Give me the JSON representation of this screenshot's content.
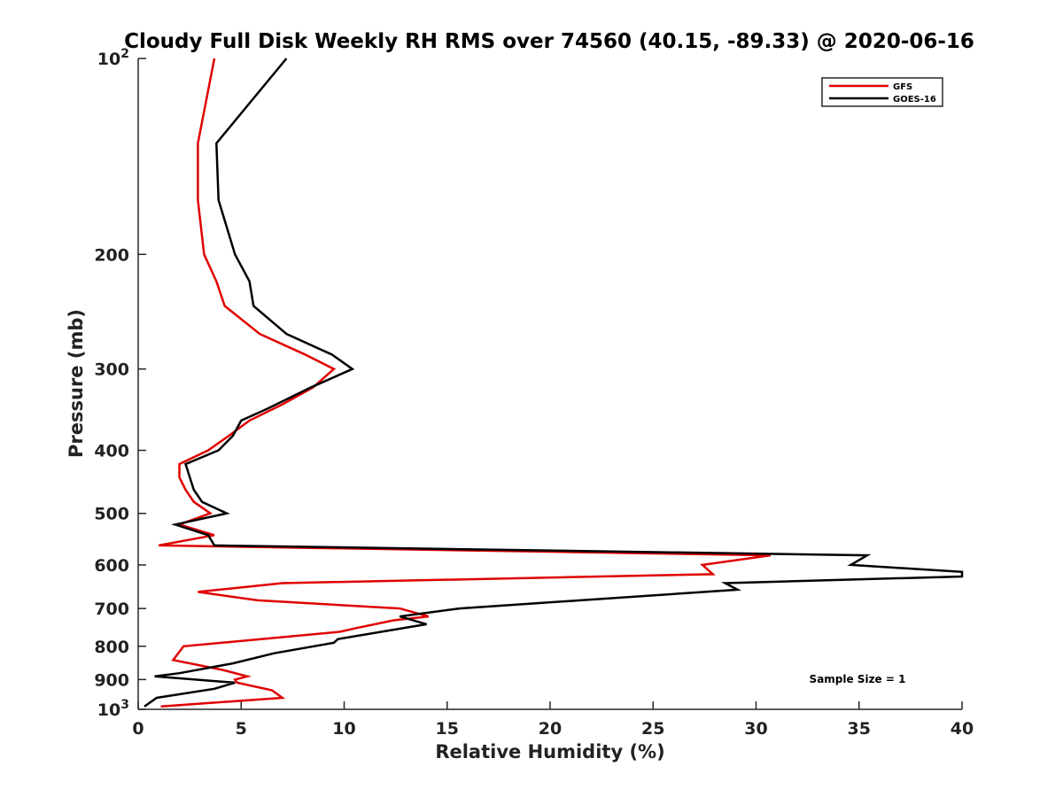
{
  "chart_data": {
    "type": "line",
    "title": "Cloudy Full Disk Weekly RH RMS over 74560 (40.15, -89.33) @ 2020-06-16",
    "xlabel": "Relative Humidity (%)",
    "ylabel": "Pressure (mb)",
    "xlim": [
      0,
      40
    ],
    "ylim": [
      100,
      1000
    ],
    "y_scale": "log",
    "y_reversed": true,
    "x_ticks": [
      "0",
      "5",
      "10",
      "15",
      "20",
      "25",
      "30",
      "35",
      "40"
    ],
    "y_ticks": [
      {
        "value": 100,
        "label_base": "10",
        "label_sup": "2"
      },
      {
        "value": 200,
        "label_base": "200",
        "label_sup": ""
      },
      {
        "value": 300,
        "label_base": "300",
        "label_sup": ""
      },
      {
        "value": 400,
        "label_base": "400",
        "label_sup": ""
      },
      {
        "value": 500,
        "label_base": "500",
        "label_sup": ""
      },
      {
        "value": 600,
        "label_base": "600",
        "label_sup": ""
      },
      {
        "value": 700,
        "label_base": "700",
        "label_sup": ""
      },
      {
        "value": 800,
        "label_base": "800",
        "label_sup": ""
      },
      {
        "value": 900,
        "label_base": "900",
        "label_sup": ""
      },
      {
        "value": 1000,
        "label_base": "10",
        "label_sup": "3"
      }
    ],
    "legend_position": "top-right",
    "annotation": "Sample Size = 1",
    "series": [
      {
        "name": "GFS",
        "color": "#e00000",
        "points": [
          [
            3.7,
            100
          ],
          [
            2.9,
            135
          ],
          [
            2.9,
            165
          ],
          [
            3.2,
            200
          ],
          [
            3.8,
            220
          ],
          [
            4.2,
            240
          ],
          [
            5.9,
            265
          ],
          [
            8.1,
            285
          ],
          [
            9.5,
            300
          ],
          [
            8.5,
            320
          ],
          [
            7.0,
            340
          ],
          [
            5.4,
            360
          ],
          [
            4.4,
            380
          ],
          [
            3.4,
            400
          ],
          [
            2.0,
            420
          ],
          [
            2.0,
            440
          ],
          [
            2.3,
            460
          ],
          [
            2.7,
            480
          ],
          [
            3.5,
            500
          ],
          [
            2.0,
            520
          ],
          [
            3.7,
            540
          ],
          [
            1.0,
            560
          ],
          [
            30.7,
            580
          ],
          [
            27.4,
            600
          ],
          [
            27.9,
            620
          ],
          [
            7.0,
            640
          ],
          [
            2.9,
            660
          ],
          [
            5.8,
            680
          ],
          [
            12.7,
            700
          ],
          [
            14.1,
            720
          ],
          [
            12.4,
            730
          ],
          [
            10.6,
            750
          ],
          [
            9.8,
            760
          ],
          [
            2.2,
            800
          ],
          [
            1.7,
            840
          ],
          [
            4.1,
            870
          ],
          [
            5.3,
            890
          ],
          [
            4.7,
            900
          ],
          [
            4.8,
            910
          ],
          [
            6.5,
            935
          ],
          [
            7.0,
            960
          ],
          [
            1.1,
            990
          ]
        ]
      },
      {
        "name": "GOES-16",
        "color": "#000000",
        "points": [
          [
            7.2,
            100
          ],
          [
            3.8,
            135
          ],
          [
            3.9,
            165
          ],
          [
            4.7,
            200
          ],
          [
            5.4,
            220
          ],
          [
            5.6,
            240
          ],
          [
            7.2,
            265
          ],
          [
            9.4,
            285
          ],
          [
            10.4,
            300
          ],
          [
            8.4,
            320
          ],
          [
            6.3,
            345
          ],
          [
            5.0,
            360
          ],
          [
            4.6,
            380
          ],
          [
            3.9,
            400
          ],
          [
            2.3,
            420
          ],
          [
            2.7,
            460
          ],
          [
            3.1,
            480
          ],
          [
            4.3,
            500
          ],
          [
            1.8,
            520
          ],
          [
            3.4,
            540
          ],
          [
            3.7,
            560
          ],
          [
            35.4,
            580
          ],
          [
            34.6,
            600
          ],
          [
            40,
            615
          ],
          [
            40,
            625
          ],
          [
            28.5,
            640
          ],
          [
            29.1,
            655
          ],
          [
            15.6,
            700
          ],
          [
            12.7,
            720
          ],
          [
            14.0,
            740
          ],
          [
            9.7,
            780
          ],
          [
            9.5,
            790
          ],
          [
            6.6,
            820
          ],
          [
            4.6,
            850
          ],
          [
            2.0,
            880
          ],
          [
            0.8,
            890
          ],
          [
            4.7,
            910
          ],
          [
            3.7,
            930
          ],
          [
            0.9,
            960
          ],
          [
            0.3,
            990
          ]
        ]
      }
    ]
  }
}
